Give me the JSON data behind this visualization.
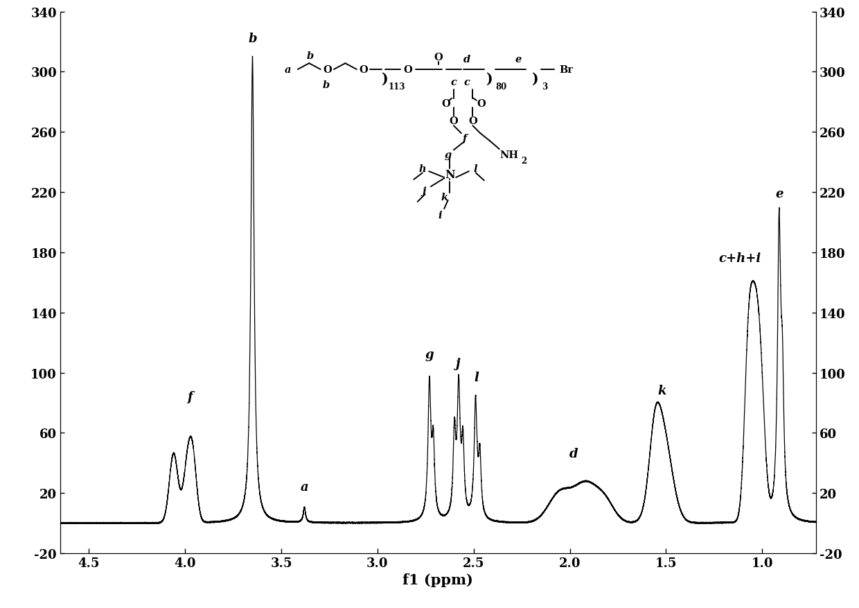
{
  "xlabel": "f1 (ppm)",
  "xlim": [
    4.65,
    0.72
  ],
  "ylim": [
    -20,
    340
  ],
  "yticks": [
    -20,
    20,
    60,
    100,
    140,
    180,
    220,
    260,
    300,
    340
  ],
  "xticks": [
    4.5,
    4.0,
    3.5,
    3.0,
    2.5,
    2.0,
    1.5,
    1.0
  ],
  "bg_color": "#ffffff",
  "line_color": "#000000"
}
